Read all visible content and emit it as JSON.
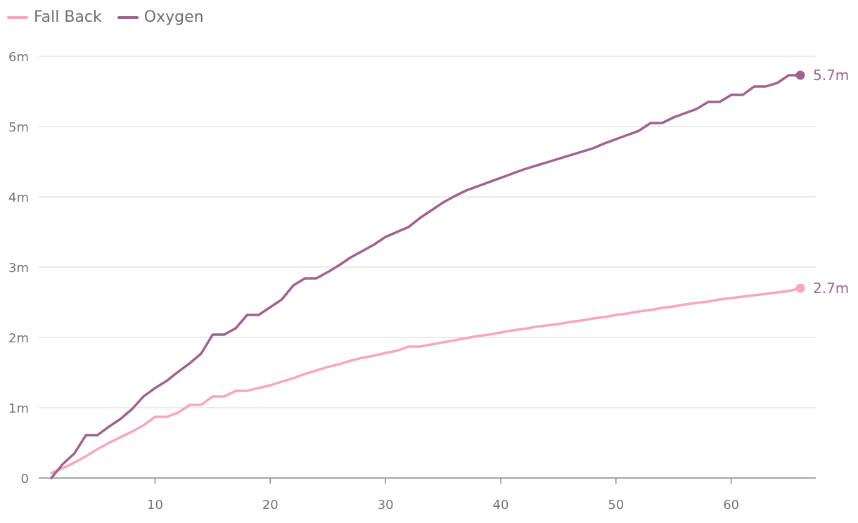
{
  "chart_data": {
    "type": "line",
    "title": "",
    "xlabel": "",
    "ylabel": "",
    "xlim": [
      0,
      66
    ],
    "ylim": [
      0,
      6000000
    ],
    "x_ticks": [
      10,
      20,
      30,
      40,
      50,
      60
    ],
    "x_tick_labels": [
      "10",
      "20",
      "30",
      "40",
      "50",
      "60"
    ],
    "y_ticks": [
      0,
      1000000,
      2000000,
      3000000,
      4000000,
      5000000,
      6000000
    ],
    "y_tick_labels": [
      "0",
      "1m",
      "2m",
      "3m",
      "4m",
      "5m",
      "6m"
    ],
    "grid": true,
    "legend_position": "top-left",
    "series": [
      {
        "name": "Fall Back",
        "color": "#f8a5c2",
        "end_label": "2.7m",
        "x": [
          1,
          2,
          3,
          4,
          5,
          6,
          7,
          8,
          9,
          10,
          11,
          12,
          13,
          14,
          15,
          16,
          17,
          18,
          19,
          20,
          21,
          22,
          23,
          24,
          25,
          26,
          27,
          28,
          29,
          30,
          31,
          32,
          33,
          34,
          35,
          36,
          37,
          38,
          39,
          40,
          41,
          42,
          43,
          44,
          45,
          46,
          47,
          48,
          49,
          50,
          51,
          52,
          53,
          54,
          55,
          56,
          57,
          58,
          59,
          60,
          61,
          62,
          63,
          64,
          65,
          66
        ],
        "values": [
          70000,
          140000,
          220000,
          310000,
          410000,
          500000,
          580000,
          660000,
          750000,
          870000,
          870000,
          930000,
          1040000,
          1040000,
          1160000,
          1160000,
          1240000,
          1240000,
          1280000,
          1320000,
          1370000,
          1420000,
          1480000,
          1530000,
          1580000,
          1620000,
          1670000,
          1710000,
          1740000,
          1780000,
          1810000,
          1870000,
          1870000,
          1900000,
          1930000,
          1960000,
          1990000,
          2020000,
          2040000,
          2070000,
          2100000,
          2120000,
          2150000,
          2170000,
          2190000,
          2220000,
          2240000,
          2270000,
          2290000,
          2320000,
          2340000,
          2370000,
          2390000,
          2420000,
          2440000,
          2470000,
          2490000,
          2510000,
          2540000,
          2560000,
          2580000,
          2600000,
          2620000,
          2640000,
          2660000,
          2700000
        ]
      },
      {
        "name": "Oxygen",
        "color": "#a0628f",
        "end_label": "5.7m",
        "x": [
          1,
          2,
          3,
          4,
          5,
          6,
          7,
          8,
          9,
          10,
          11,
          12,
          13,
          14,
          15,
          16,
          17,
          18,
          19,
          20,
          21,
          22,
          23,
          24,
          25,
          26,
          27,
          28,
          29,
          30,
          31,
          32,
          33,
          34,
          35,
          36,
          37,
          38,
          39,
          40,
          41,
          42,
          43,
          44,
          45,
          46,
          47,
          48,
          49,
          50,
          51,
          52,
          53,
          54,
          55,
          56,
          57,
          58,
          59,
          60,
          61,
          62,
          63,
          64,
          65,
          66
        ],
        "values": [
          0,
          200000,
          350000,
          610000,
          610000,
          730000,
          840000,
          980000,
          1160000,
          1280000,
          1380000,
          1510000,
          1630000,
          1770000,
          2040000,
          2040000,
          2130000,
          2320000,
          2320000,
          2430000,
          2540000,
          2740000,
          2840000,
          2840000,
          2930000,
          3030000,
          3140000,
          3230000,
          3320000,
          3430000,
          3500000,
          3570000,
          3700000,
          3810000,
          3920000,
          4010000,
          4090000,
          4150000,
          4210000,
          4270000,
          4330000,
          4390000,
          4440000,
          4490000,
          4540000,
          4590000,
          4640000,
          4690000,
          4760000,
          4820000,
          4880000,
          4940000,
          5050000,
          5050000,
          5130000,
          5190000,
          5250000,
          5350000,
          5350000,
          5450000,
          5450000,
          5570000,
          5570000,
          5620000,
          5730000,
          5730000
        ]
      }
    ]
  }
}
